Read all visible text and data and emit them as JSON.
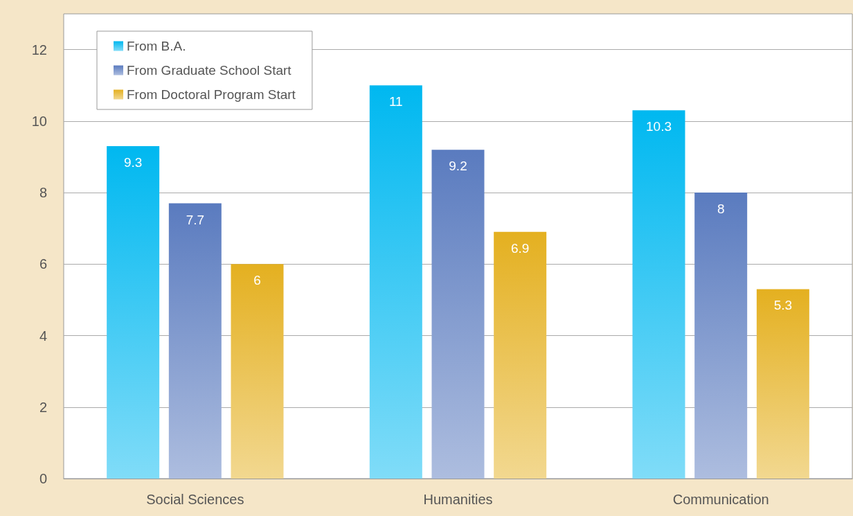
{
  "chart_data": {
    "type": "bar",
    "categories": [
      "Social Sciences",
      "Humanities",
      "Communication"
    ],
    "series": [
      {
        "name": "From B.A.",
        "color": "#00b8f0",
        "values": [
          9.3,
          11,
          10.3
        ]
      },
      {
        "name": "From Graduate School Start",
        "color": "#5a7bbf",
        "values": [
          7.7,
          9.2,
          8
        ]
      },
      {
        "name": "From Doctoral Program Start",
        "color": "#e4b020",
        "values": [
          6,
          6.9,
          5.3
        ]
      }
    ],
    "ylim": [
      0,
      13
    ],
    "yticks": [
      0,
      2,
      4,
      6,
      8,
      10,
      12
    ],
    "grid": "y",
    "legend": "top left",
    "data_labels": true
  }
}
